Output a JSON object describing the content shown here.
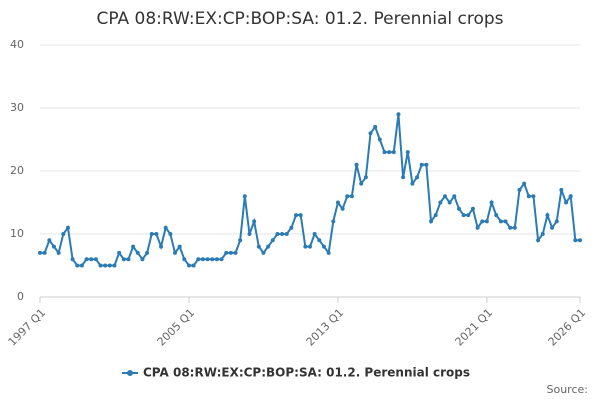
{
  "chart_data": {
    "type": "line",
    "title": "CPA 08:RW:EX:CP:BOP:SA: 01.2. Perennial crops",
    "source": "Source:",
    "categories": [
      "1997 Q1",
      null,
      null,
      null,
      null,
      null,
      null,
      null,
      null,
      null,
      null,
      null,
      null,
      null,
      null,
      null,
      null,
      null,
      null,
      null,
      null,
      null,
      null,
      null,
      null,
      null,
      null,
      null,
      null,
      null,
      null,
      null,
      "2005 Q1",
      null,
      null,
      null,
      null,
      null,
      null,
      null,
      null,
      null,
      null,
      null,
      null,
      null,
      null,
      null,
      null,
      null,
      null,
      null,
      null,
      null,
      null,
      null,
      null,
      null,
      null,
      null,
      null,
      null,
      null,
      null,
      "2013 Q1",
      null,
      null,
      null,
      null,
      null,
      null,
      null,
      null,
      null,
      null,
      null,
      null,
      null,
      null,
      null,
      null,
      null,
      null,
      null,
      null,
      null,
      null,
      null,
      null,
      null,
      null,
      null,
      null,
      null,
      null,
      null,
      "2021 Q1",
      null,
      null,
      null,
      null,
      null,
      null,
      null,
      null,
      null,
      null,
      null,
      null,
      null,
      null,
      null,
      null,
      null,
      null,
      null,
      "2026 Q1"
    ],
    "series": [
      {
        "name": "CPA 08:RW:EX:CP:BOP:SA: 01.2. Perennial crops",
        "color": "#2b7bb5",
        "values": [
          7,
          7,
          9,
          8,
          7,
          10,
          11,
          6,
          5,
          5,
          6,
          6,
          6,
          5,
          5,
          5,
          5,
          7,
          6,
          6,
          8,
          7,
          6,
          7,
          10,
          10,
          8,
          11,
          10,
          7,
          8,
          6,
          5,
          5,
          6,
          6,
          6,
          6,
          6,
          6,
          7,
          7,
          7,
          9,
          16,
          10,
          12,
          8,
          7,
          8,
          9,
          10,
          10,
          10,
          11,
          13,
          13,
          8,
          8,
          10,
          9,
          8,
          7,
          12,
          15,
          14,
          16,
          16,
          21,
          18,
          19,
          26,
          27,
          25,
          23,
          23,
          23,
          29,
          19,
          23,
          18,
          19,
          21,
          21,
          12,
          13,
          15,
          16,
          15,
          16,
          14,
          13,
          13,
          14,
          11,
          12,
          12,
          15,
          13,
          12,
          12,
          11,
          11,
          17,
          18,
          16,
          16,
          9,
          10,
          13,
          11,
          12,
          17,
          15,
          16,
          9,
          9
        ]
      }
    ],
    "ylim": [
      0,
      40
    ],
    "yticks": [
      0,
      10,
      20,
      30,
      40
    ],
    "grid": true
  }
}
